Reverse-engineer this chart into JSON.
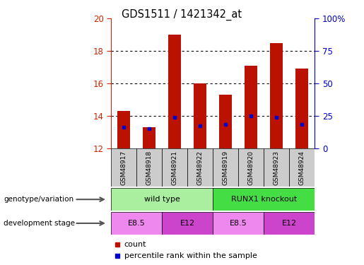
{
  "title": "GDS1511 / 1421342_at",
  "samples": [
    "GSM48917",
    "GSM48918",
    "GSM48921",
    "GSM48922",
    "GSM48919",
    "GSM48920",
    "GSM48923",
    "GSM48924"
  ],
  "count_values": [
    14.3,
    13.3,
    19.0,
    16.0,
    15.3,
    17.1,
    18.5,
    16.9
  ],
  "percentile_values": [
    13.3,
    13.2,
    13.9,
    13.4,
    13.5,
    14.0,
    13.9,
    13.5
  ],
  "bar_bottom": 12.0,
  "ylim_left": [
    12,
    20
  ],
  "ylim_right": [
    0,
    100
  ],
  "yticks_left": [
    12,
    14,
    16,
    18,
    20
  ],
  "yticks_right": [
    0,
    25,
    50,
    75,
    100
  ],
  "ytick_labels_right": [
    "0",
    "25",
    "50",
    "75",
    "100%"
  ],
  "bar_color": "#bb1100",
  "percentile_color": "#0000cc",
  "bar_width": 0.5,
  "genotype_groups": [
    {
      "label": "wild type",
      "start": 0,
      "end": 4,
      "color": "#aaeea0"
    },
    {
      "label": "RUNX1 knockout",
      "start": 4,
      "end": 8,
      "color": "#44dd44"
    }
  ],
  "development_groups": [
    {
      "label": "E8.5",
      "start": 0,
      "end": 2,
      "color": "#ee88ee"
    },
    {
      "label": "E12",
      "start": 2,
      "end": 4,
      "color": "#cc44cc"
    },
    {
      "label": "E8.5",
      "start": 4,
      "end": 6,
      "color": "#ee88ee"
    },
    {
      "label": "E12",
      "start": 6,
      "end": 8,
      "color": "#cc44cc"
    }
  ],
  "label_genotype": "genotype/variation",
  "label_development": "development stage",
  "legend_count": "count",
  "legend_percentile": "percentile rank within the sample",
  "tick_color_left": "#cc2200",
  "tick_color_right": "#0000cc",
  "sample_box_color": "#cccccc",
  "background_color": "#ffffff"
}
